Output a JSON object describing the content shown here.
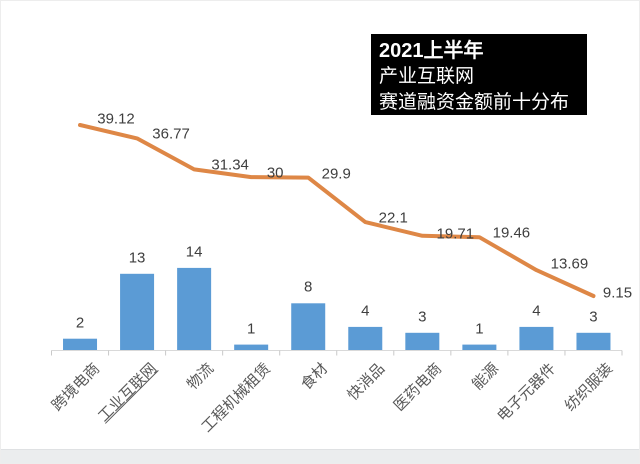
{
  "chart_data": {
    "type": "combo-bar-line",
    "title_lines": [
      "2021上半年",
      "产业互联网",
      "赛道融资金额前十分布"
    ],
    "categories": [
      {
        "label": "跨境电商",
        "underline": false
      },
      {
        "label": "工业互联网",
        "underline": true
      },
      {
        "label": "物流",
        "underline": false
      },
      {
        "label": "工程机械租赁",
        "underline": false
      },
      {
        "label": "食材",
        "underline": false
      },
      {
        "label": "快消品",
        "underline": false
      },
      {
        "label": "医药电商",
        "underline": false
      },
      {
        "label": "能源",
        "underline": false
      },
      {
        "label": "电子元器件",
        "underline": false
      },
      {
        "label": "纺织服装",
        "underline": false
      }
    ],
    "series": [
      {
        "type": "bar",
        "values": [
          2,
          13,
          14,
          1,
          8,
          4,
          3,
          1,
          4,
          3
        ],
        "color": "#5B9BD5",
        "labels_visible": true
      },
      {
        "type": "line",
        "values": [
          39.12,
          36.77,
          31.34,
          30,
          29.9,
          22.1,
          19.71,
          19.46,
          13.69,
          9.15
        ],
        "color": "#DE8746",
        "labels_visible": true
      }
    ],
    "legend": "none",
    "gridlines": false,
    "value_axes_visible": false,
    "category_axis": {
      "line_color": "#d9d9d9",
      "tick_color": "#c9c9c9",
      "label_rotation_deg": -45
    },
    "title_style": {
      "background": "#000000",
      "text_color": "#ffffff"
    }
  }
}
